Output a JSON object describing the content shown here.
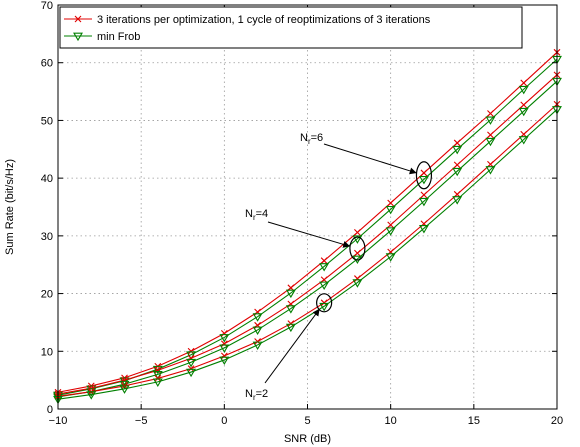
{
  "chart_data": {
    "type": "line",
    "xlabel": "SNR (dB)",
    "ylabel": "Sum Rate (bit/s/Hz)",
    "xlim": [
      -10,
      20
    ],
    "ylim": [
      0,
      70
    ],
    "x_ticks": [
      -10,
      -5,
      0,
      5,
      10,
      15,
      20
    ],
    "y_ticks": [
      0,
      10,
      20,
      30,
      40,
      50,
      60,
      70
    ],
    "grid": true,
    "legend_position": "top-left",
    "x": [
      -10,
      -8,
      -6,
      -4,
      -2,
      0,
      2,
      4,
      6,
      8,
      10,
      12,
      14,
      16,
      18,
      20
    ],
    "series": [
      {
        "name": "3 iterations per optimization, 1 cycle of reoptimizations of 3 iterations",
        "color": "#e00000",
        "marker": "x",
        "values": [
          2.9,
          4.0,
          5.4,
          7.4,
          10.0,
          13.1,
          16.8,
          21.0,
          25.7,
          30.6,
          35.7,
          40.9,
          46.1,
          51.2,
          56.5,
          61.8
        ]
      },
      {
        "name": "min Frob",
        "color": "#008000",
        "marker": "triangle-down",
        "values": [
          2.4,
          3.5,
          4.9,
          6.9,
          9.4,
          12.4,
          16.0,
          20.1,
          24.7,
          29.5,
          34.6,
          39.8,
          45.0,
          50.1,
          55.4,
          60.6
        ]
      },
      {
        "name": "",
        "color": "#e00000",
        "marker": "x",
        "values": [
          2.6,
          3.6,
          5.0,
          6.7,
          8.8,
          11.3,
          14.5,
          18.2,
          22.4,
          27.0,
          31.9,
          37.1,
          42.3,
          47.5,
          52.7,
          57.9
        ]
      },
      {
        "name": "",
        "color": "#008000",
        "marker": "triangle-down",
        "values": [
          2.1,
          3.0,
          4.3,
          6.0,
          8.1,
          10.6,
          13.7,
          17.4,
          21.5,
          26.0,
          30.9,
          36.0,
          41.2,
          46.4,
          51.6,
          56.8
        ]
      },
      {
        "name": "",
        "color": "#e00000",
        "marker": "x",
        "values": [
          2.2,
          3.0,
          4.0,
          5.3,
          7.0,
          9.2,
          11.7,
          14.8,
          18.4,
          22.6,
          27.2,
          32.1,
          37.2,
          42.4,
          47.6,
          52.8
        ]
      },
      {
        "name": "",
        "color": "#008000",
        "marker": "triangle-down",
        "values": [
          1.7,
          2.5,
          3.5,
          4.7,
          6.4,
          8.5,
          11.1,
          14.2,
          17.8,
          21.9,
          26.4,
          31.3,
          36.3,
          41.5,
          46.7,
          51.9
        ]
      }
    ],
    "annotations": [
      {
        "base": "N",
        "sub": "r",
        "suffix": "=6",
        "target": [
          12,
          40.5
        ]
      },
      {
        "base": "N",
        "sub": "r",
        "suffix": "=4",
        "target": [
          8,
          27.8
        ]
      },
      {
        "base": "N",
        "sub": "r",
        "suffix": "=2",
        "target": [
          6,
          18.4
        ]
      }
    ]
  }
}
